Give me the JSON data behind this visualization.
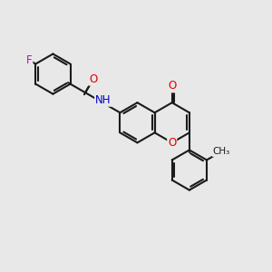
{
  "bg_color": "#e8e8e8",
  "bond_color": "#1a1a1a",
  "bond_width": 1.5,
  "atom_colors": {
    "O": "#dd0000",
    "N": "#0000cc",
    "F": "#cc00cc",
    "C": "#1a1a1a"
  },
  "font_size": 8.5,
  "figsize": [
    3.0,
    3.0
  ],
  "dpi": 100
}
